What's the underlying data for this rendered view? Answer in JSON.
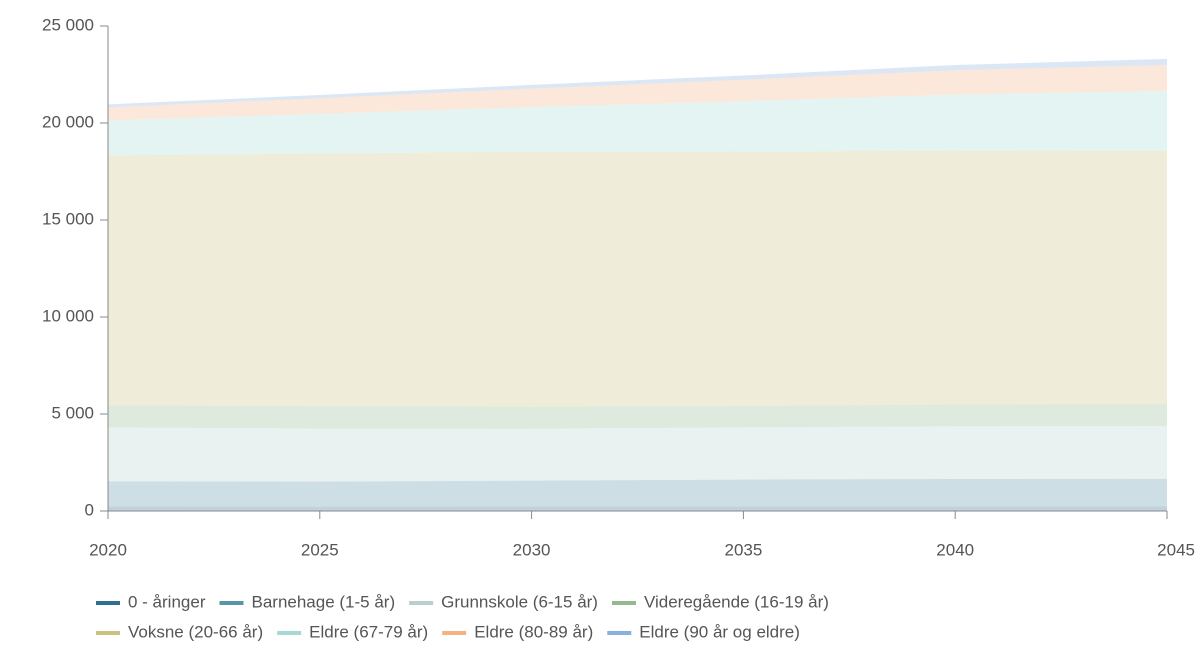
{
  "chart_data": {
    "type": "stacked-area",
    "x": [
      2020,
      2025,
      2030,
      2035,
      2040,
      2045
    ],
    "xlim": [
      2020,
      2045
    ],
    "xticks": [
      2020,
      2025,
      2030,
      2035,
      2040,
      2045
    ],
    "ylim": [
      0,
      25000
    ],
    "yticks": [
      0,
      {
        "value": 5000,
        "label": "5 000"
      },
      {
        "value": 10000,
        "label": "10 000"
      },
      {
        "value": 15000,
        "label": "15 000"
      },
      {
        "value": 20000,
        "label": "20 000"
      },
      {
        "value": 25000,
        "label": "25 000"
      }
    ],
    "grid": false,
    "series": [
      {
        "name": "0 - åringer",
        "color": "#2e6e8e",
        "values": [
          230,
          225,
          235,
          240,
          240,
          235
        ]
      },
      {
        "name": "Barnehage (1-5 år)",
        "color": "#5b93a8",
        "values": [
          1300,
          1290,
          1330,
          1380,
          1410,
          1420
        ]
      },
      {
        "name": "Grunnskole (6-15 år)",
        "color": "#b8cfd0",
        "values": [
          2780,
          2740,
          2680,
          2690,
          2720,
          2730
        ]
      },
      {
        "name": "Videregående (16-19 år)",
        "color": "#93b98e",
        "values": [
          1130,
          1150,
          1130,
          1100,
          1120,
          1135
        ]
      },
      {
        "name": "Voksne (20-66 år)",
        "color": "#c9c382",
        "values": [
          12890,
          13020,
          13150,
          13120,
          13080,
          13045
        ]
      },
      {
        "name": "Eldre (67-79 år)",
        "color": "#a5d9d5",
        "values": [
          1805,
          2050,
          2300,
          2600,
          2900,
          3090
        ]
      },
      {
        "name": "Eldre (80-89 år)",
        "color": "#f5b383",
        "values": [
          670,
          800,
          950,
          1100,
          1250,
          1340
        ]
      },
      {
        "name": "Eldre (90 år og eldre)",
        "color": "#8ab0e0",
        "values": [
          155,
          170,
          190,
          220,
          270,
          310
        ]
      }
    ]
  }
}
